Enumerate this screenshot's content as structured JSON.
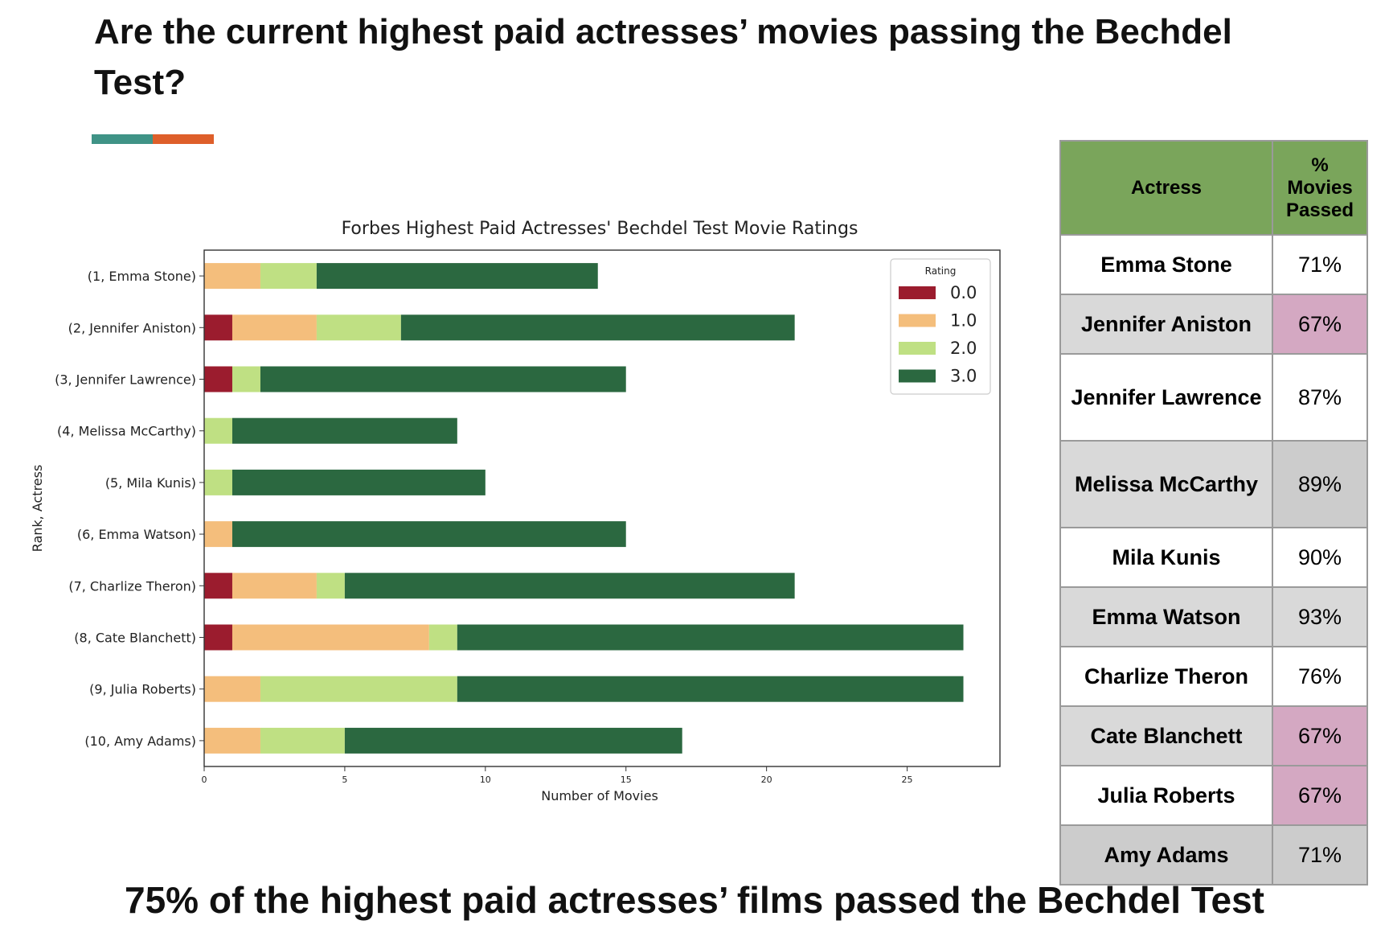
{
  "slide": {
    "title": "Are the current highest paid actresses’ movies passing the Bechdel Test?",
    "accent_colors": [
      "#3f9386",
      "#de5f2a"
    ],
    "takeaway": "75% of the highest paid actresses’ films passed the Bechdel Test"
  },
  "chart_data": {
    "type": "bar",
    "orientation": "horizontal",
    "stacked": true,
    "title": "Forbes Highest Paid Actresses' Bechdel Test Movie Ratings",
    "xlabel": "Number of Movies",
    "ylabel": "Rank, Actress",
    "xlim": [
      0,
      28.3
    ],
    "xticks": [
      0,
      5,
      10,
      15,
      20,
      25
    ],
    "grid": false,
    "legend": {
      "title": "Rating",
      "position": "top-right"
    },
    "categories": [
      "(1, Emma Stone)",
      "(2, Jennifer Aniston)",
      "(3, Jennifer Lawrence)",
      "(4, Melissa McCarthy)",
      "(5, Mila Kunis)",
      "(6, Emma Watson)",
      "(7, Charlize Theron)",
      "(8, Cate Blanchett)",
      "(9, Julia Roberts)",
      "(10, Amy Adams)"
    ],
    "series": [
      {
        "name": "0.0",
        "color": "#9b1c2e",
        "values": [
          0,
          1,
          1,
          0,
          0,
          0,
          1,
          1,
          0,
          0
        ]
      },
      {
        "name": "1.0",
        "color": "#f4be7c",
        "values": [
          2,
          3,
          0,
          0,
          0,
          1,
          3,
          7,
          2,
          2
        ]
      },
      {
        "name": "2.0",
        "color": "#bfe083",
        "values": [
          2,
          3,
          1,
          1,
          1,
          0,
          1,
          1,
          7,
          3
        ]
      },
      {
        "name": "3.0",
        "color": "#2b6840",
        "values": [
          10,
          14,
          13,
          8,
          9,
          14,
          16,
          18,
          18,
          12
        ]
      }
    ]
  },
  "table": {
    "header_color": "#7aa55b",
    "columns": [
      "Actress",
      "% Movies Passed"
    ],
    "rows": [
      {
        "actress": "Emma Stone",
        "pct": "71%",
        "row_bg": "#ffffff",
        "pct_bg": "#ffffff"
      },
      {
        "actress": "Jennifer Aniston",
        "pct": "67%",
        "row_bg": "#d9d9d9",
        "pct_bg": "#d4a8c2"
      },
      {
        "actress": "Jennifer Lawrence",
        "pct": "87%",
        "row_bg": "#ffffff",
        "pct_bg": "#ffffff"
      },
      {
        "actress": "Melissa McCarthy",
        "pct": "89%",
        "row_bg": "#d9d9d9",
        "pct_bg": "#cccccc"
      },
      {
        "actress": "Mila Kunis",
        "pct": "90%",
        "row_bg": "#ffffff",
        "pct_bg": "#ffffff"
      },
      {
        "actress": "Emma Watson",
        "pct": "93%",
        "row_bg": "#d9d9d9",
        "pct_bg": "#d9d9d9"
      },
      {
        "actress": "Charlize Theron",
        "pct": "76%",
        "row_bg": "#ffffff",
        "pct_bg": "#ffffff"
      },
      {
        "actress": "Cate Blanchett",
        "pct": "67%",
        "row_bg": "#d9d9d9",
        "pct_bg": "#d4a8c2"
      },
      {
        "actress": "Julia Roberts",
        "pct": "67%",
        "row_bg": "#ffffff",
        "pct_bg": "#d4a8c2"
      },
      {
        "actress": "Amy Adams",
        "pct": "71%",
        "row_bg": "#cccccc",
        "pct_bg": "#cccccc"
      }
    ]
  }
}
